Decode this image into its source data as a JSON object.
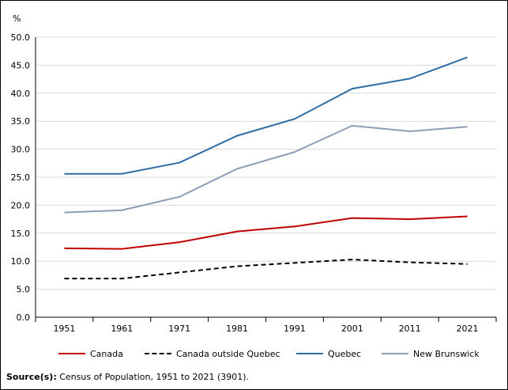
{
  "chart_data": {
    "type": "line",
    "ylabel": "%",
    "categories": [
      "1951",
      "1961",
      "1971",
      "1981",
      "1991",
      "2001",
      "2011",
      "2021"
    ],
    "yticks": [
      "0.0",
      "5.0",
      "10.0",
      "15.0",
      "20.0",
      "25.0",
      "30.0",
      "35.0",
      "40.0",
      "45.0",
      "50.0"
    ],
    "ylim": [
      0,
      50
    ],
    "grid": true,
    "legend_position": "bottom",
    "series": [
      {
        "name": "Canada",
        "color": "#c00000",
        "dash": "solid",
        "values": [
          12.3,
          12.2,
          13.4,
          15.3,
          16.2,
          17.7,
          17.5,
          18.0
        ]
      },
      {
        "name": "Canada outside Quebec",
        "color": "#000000",
        "dash": "dashed",
        "values": [
          6.9,
          6.9,
          8.0,
          9.1,
          9.7,
          10.3,
          9.8,
          9.5
        ]
      },
      {
        "name": "Quebec",
        "color": "#2e6da4",
        "dash": "solid",
        "values": [
          25.6,
          25.6,
          27.6,
          32.4,
          35.4,
          40.8,
          42.6,
          46.4
        ]
      },
      {
        "name": "New Brunswick",
        "color": "#8c9db5",
        "dash": "solid",
        "values": [
          18.7,
          19.1,
          21.5,
          26.5,
          29.5,
          34.2,
          33.2,
          34.0
        ]
      }
    ]
  },
  "source": {
    "label": "Source(s):",
    "text": " Census of Population, 1951 to 2021 (3901)."
  }
}
